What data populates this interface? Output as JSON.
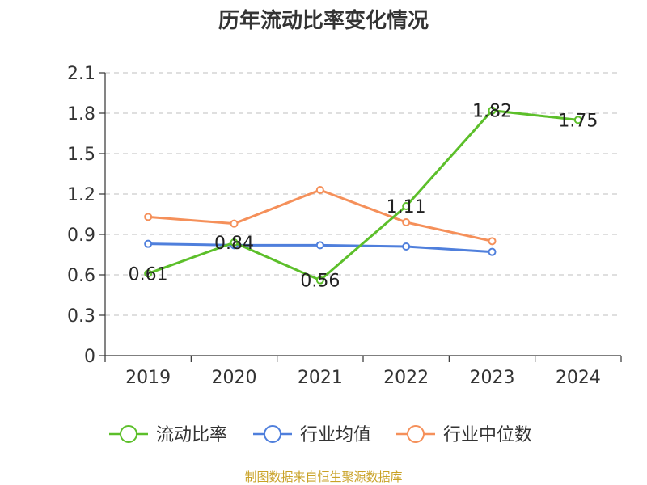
{
  "chart_data": {
    "type": "line",
    "title": "历年流动比率变化情况",
    "categories": [
      "2019",
      "2020",
      "2021",
      "2022",
      "2023",
      "2024"
    ],
    "y_ticks": [
      "0",
      "0.3",
      "0.6",
      "0.9",
      "1.2",
      "1.5",
      "1.8",
      "2.1"
    ],
    "ylim": [
      0,
      2.1
    ],
    "grid": true,
    "legend_position": "bottom",
    "series": [
      {
        "name": "流动比率",
        "color": "#5cbf2a",
        "values": [
          0.61,
          0.84,
          0.56,
          1.11,
          1.82,
          1.75
        ],
        "labels": [
          "0.61",
          "0.84",
          "0.56",
          "1.11",
          "1.82",
          "1.75"
        ]
      },
      {
        "name": "行业均值",
        "color": "#4f7fdc",
        "values": [
          0.83,
          0.82,
          0.82,
          0.81,
          0.77,
          null
        ]
      },
      {
        "name": "行业中位数",
        "color": "#f5905a",
        "values": [
          1.03,
          0.98,
          1.23,
          0.99,
          0.85,
          null
        ]
      }
    ]
  },
  "footer": {
    "source": "制图数据来自恒生聚源数据库"
  }
}
